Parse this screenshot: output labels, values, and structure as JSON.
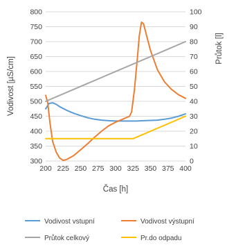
{
  "chart_data": {
    "type": "line",
    "xlabel": "Čas [h]",
    "ylabel_left": "Vodivost [µS/cm]",
    "ylabel_right": "Průtok [l]",
    "xlim": [
      200,
      400
    ],
    "ylim_left": [
      300,
      800
    ],
    "ylim_right": [
      0,
      100
    ],
    "x_ticks": [
      200,
      225,
      250,
      275,
      300,
      325,
      350,
      375,
      400
    ],
    "y_left_ticks": [
      300,
      350,
      400,
      450,
      500,
      550,
      600,
      650,
      700,
      750,
      800
    ],
    "y_right_ticks": [
      0,
      10,
      20,
      30,
      40,
      50,
      60,
      70,
      80,
      90,
      100
    ],
    "grid": "horizontal",
    "legend_position": "bottom",
    "series": [
      {
        "name": "Vodivost vstupní",
        "axis": "left",
        "color": "#5b9bd5",
        "x": [
          200,
          205,
          210,
          215,
          220,
          230,
          240,
          250,
          260,
          270,
          280,
          290,
          300,
          310,
          320,
          330,
          340,
          350,
          360,
          370,
          380,
          390,
          400
        ],
        "y": [
          475,
          493,
          495,
          490,
          482,
          470,
          460,
          452,
          445,
          440,
          437,
          435,
          434,
          434,
          434,
          434,
          435,
          436,
          437,
          440,
          444,
          450,
          458
        ]
      },
      {
        "name": "Vodivost výstupní",
        "axis": "left",
        "color": "#ed7d31",
        "x": [
          200,
          203,
          206,
          210,
          215,
          220,
          225,
          230,
          240,
          250,
          260,
          270,
          280,
          290,
          300,
          310,
          320,
          323,
          327,
          331,
          334,
          337,
          340,
          345,
          350,
          360,
          370,
          380,
          390,
          400
        ],
        "y": [
          520,
          495,
          430,
          365,
          330,
          310,
          302,
          305,
          318,
          338,
          358,
          380,
          400,
          418,
          430,
          440,
          450,
          465,
          540,
          640,
          720,
          765,
          760,
          715,
          670,
          605,
          565,
          540,
          522,
          510
        ]
      },
      {
        "name": "Průtok celkový",
        "axis": "right",
        "color": "#a5a5a5",
        "x": [
          200,
          400
        ],
        "y": [
          40,
          80
        ]
      },
      {
        "name": "Pr.do odpadu",
        "axis": "right",
        "color": "#ffc000",
        "x": [
          200,
          325,
          400
        ],
        "y": [
          15,
          15,
          30
        ]
      }
    ]
  }
}
